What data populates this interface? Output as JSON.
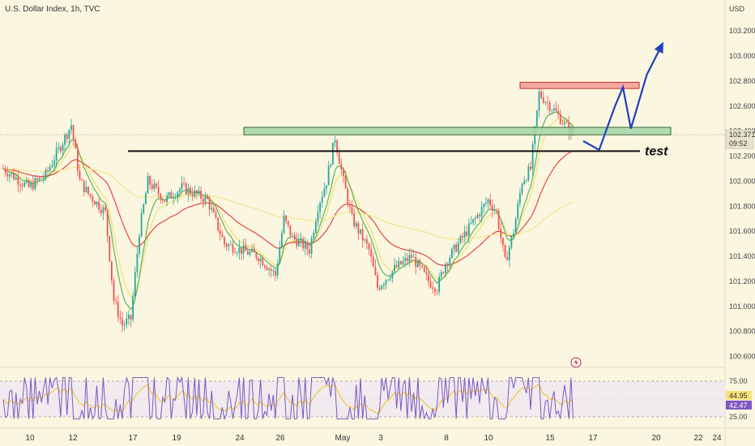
{
  "header": {
    "title": "U.S. Dollar Index, 1h, TVC",
    "currency": "USD"
  },
  "price_axis": {
    "ticks": [
      "103.200",
      "103.000",
      "102.800",
      "102.600",
      "102.400",
      "102.200",
      "102.000",
      "101.800",
      "101.600",
      "101.400",
      "101.200",
      "101.000",
      "100.800",
      "100.600"
    ],
    "current_price": "102.371",
    "countdown": "09:52"
  },
  "date_axis": {
    "ticks": [
      "10",
      "12",
      "17",
      "19",
      "24",
      "26",
      "May",
      "3",
      "8",
      "10",
      "15",
      "17",
      "20",
      "22",
      "24"
    ]
  },
  "rsi": {
    "ticks": [
      "75.00",
      "25.00"
    ],
    "value_a": "44.95",
    "value_b": "42.47"
  },
  "annotations": {
    "test_label": "test"
  },
  "colors": {
    "background": "#fbf6e0",
    "bull": "#26a69a",
    "bear": "#ef5350",
    "ema_fast": "#4caf50",
    "ema_mid": "#e53935",
    "ema_slow": "#f0e68c",
    "rsi_line": "#7e57c2",
    "rsi_signal": "#f0c419",
    "projection": "#1f3fbf",
    "support_zone": "#a5d6a7",
    "resistance_zone": "#f4a9a0"
  },
  "chart_data": {
    "type": "candlestick",
    "ylim": [
      100.5,
      103.35
    ],
    "resistance_zone": [
      102.74,
      102.79
    ],
    "support_zone": [
      102.37,
      102.43
    ],
    "test_level": 102.24,
    "price_path": [
      [
        0,
        102.1
      ],
      [
        3,
        101.95
      ],
      [
        5,
        102.05
      ],
      [
        8,
        102.45
      ],
      [
        9,
        102.0
      ],
      [
        10,
        101.9
      ],
      [
        12,
        101.75
      ],
      [
        13,
        101.05
      ],
      [
        14,
        100.85
      ],
      [
        15,
        100.9
      ],
      [
        16,
        101.6
      ],
      [
        17,
        102.0
      ],
      [
        19,
        101.85
      ],
      [
        21,
        101.95
      ],
      [
        24,
        101.85
      ],
      [
        26,
        101.5
      ],
      [
        28,
        101.45
      ],
      [
        30,
        101.4
      ],
      [
        32,
        101.25
      ],
      [
        33,
        101.7
      ],
      [
        34,
        101.55
      ],
      [
        36,
        101.45
      ],
      [
        37,
        101.8
      ],
      [
        38,
        102.0
      ],
      [
        39,
        102.35
      ],
      [
        40,
        102.0
      ],
      [
        41,
        101.7
      ],
      [
        43,
        101.45
      ],
      [
        44,
        101.15
      ],
      [
        46,
        101.3
      ],
      [
        48,
        101.4
      ],
      [
        50,
        101.2
      ],
      [
        51,
        101.15
      ],
      [
        52,
        101.35
      ],
      [
        55,
        101.65
      ],
      [
        57,
        101.85
      ],
      [
        58,
        101.75
      ],
      [
        59,
        101.35
      ],
      [
        60,
        101.6
      ],
      [
        61,
        102.0
      ],
      [
        62,
        102.1
      ],
      [
        63,
        102.7
      ],
      [
        65,
        102.55
      ],
      [
        66,
        102.45
      ],
      [
        67,
        102.38
      ]
    ],
    "projection": [
      [
        67,
        102.32
      ],
      [
        69,
        102.25
      ],
      [
        71,
        102.6
      ],
      [
        72,
        102.75
      ],
      [
        73,
        102.42
      ],
      [
        75,
        102.85
      ],
      [
        77,
        103.1
      ]
    ]
  }
}
